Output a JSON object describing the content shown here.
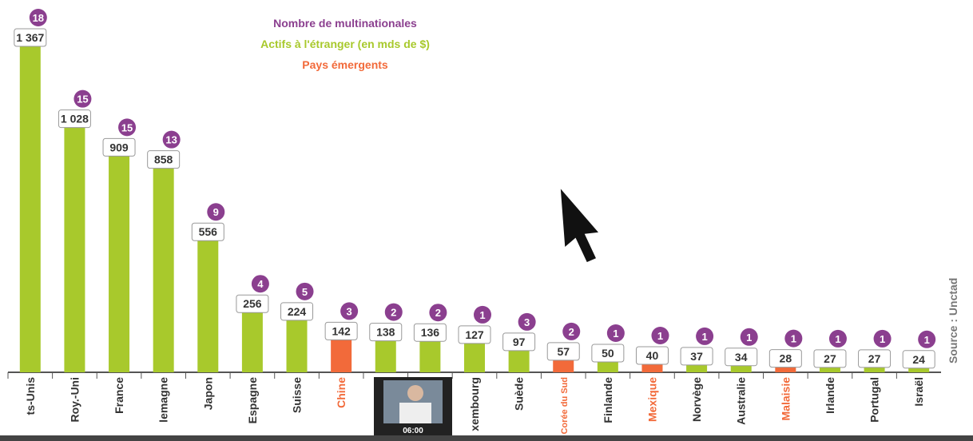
{
  "chart_data": {
    "type": "bar",
    "categories": [
      "ts-Unis",
      "Roy.-Uni",
      "France",
      "lemagne",
      "Japon",
      "Espagne",
      "Suisse",
      "Chine",
      null,
      null,
      "xembourg",
      "Suède",
      "Corée du Sud",
      "Finlande",
      "Mexique",
      "Norvège",
      "Australie",
      "Malaisie",
      "Irlande",
      "Portugal",
      "Israël"
    ],
    "emerging": [
      false,
      false,
      false,
      false,
      false,
      false,
      false,
      true,
      false,
      false,
      false,
      false,
      true,
      false,
      true,
      false,
      false,
      true,
      false,
      false,
      false
    ],
    "emerging_legend": {
      "name": "Pays émergents",
      "color": "#f26a3a"
    },
    "series": [
      {
        "name": "Actifs à l'étranger (en mds de $)",
        "color": "#a8c92c",
        "values": [
          1367,
          1028,
          909,
          858,
          556,
          256,
          224,
          142,
          138,
          136,
          127,
          97,
          57,
          50,
          40,
          37,
          34,
          28,
          27,
          27,
          24
        ],
        "value_labels": [
          "1 367",
          "1 028",
          "909",
          "858",
          "556",
          "256",
          "224",
          "142",
          "138",
          "136",
          "127",
          "97",
          "57",
          "50",
          "40",
          "37",
          "34",
          "28",
          "27",
          "27",
          "24"
        ]
      },
      {
        "name": "Nombre de multinationales",
        "color": "#8b3f8f",
        "values": [
          18,
          15,
          15,
          13,
          9,
          4,
          5,
          3,
          2,
          2,
          1,
          3,
          2,
          1,
          1,
          1,
          1,
          1,
          1,
          1,
          1
        ]
      }
    ],
    "source": "Source : Unctad",
    "video_time": "06:00"
  }
}
